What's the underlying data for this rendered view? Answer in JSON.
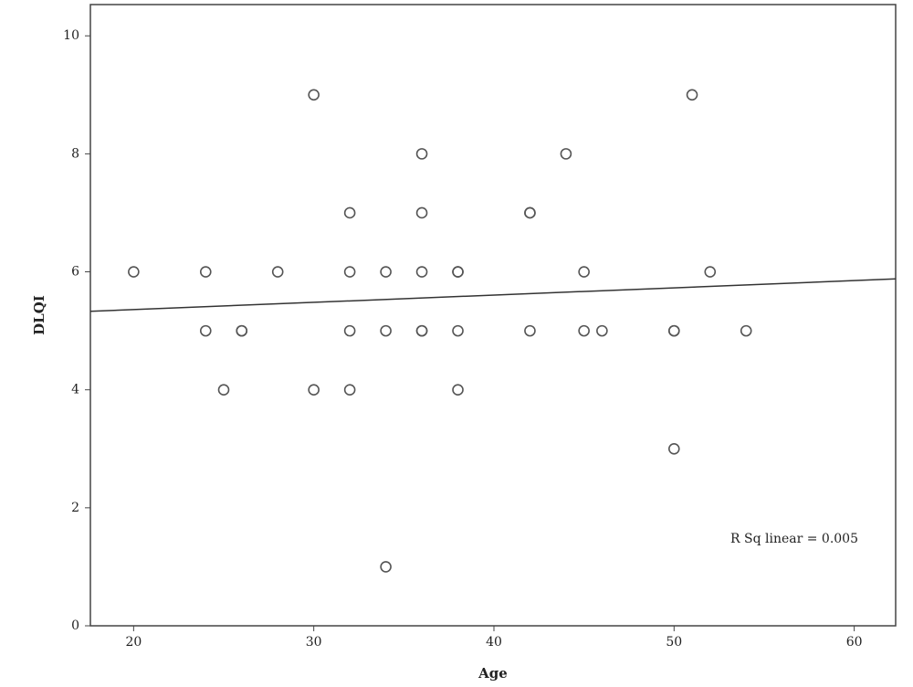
{
  "chart_data": {
    "type": "scatter",
    "xlabel": "Age",
    "ylabel": "DLQI",
    "annotation": "R Sq linear = 0.005",
    "x": [
      20,
      24,
      24,
      25,
      26,
      26,
      28,
      30,
      30,
      32,
      32,
      32,
      32,
      34,
      34,
      34,
      36,
      36,
      36,
      36,
      36,
      38,
      38,
      38,
      38,
      42,
      42,
      42,
      44,
      45,
      45,
      46,
      50,
      50,
      50,
      51,
      52,
      54
    ],
    "values": [
      6,
      6,
      5,
      4,
      5,
      5,
      6,
      9,
      4,
      7,
      6,
      5,
      4,
      6,
      5,
      1,
      8,
      7,
      6,
      5,
      5,
      6,
      6,
      5,
      4,
      7,
      7,
      5,
      8,
      6,
      5,
      5,
      5,
      5,
      3,
      9,
      6,
      5
    ],
    "color": "#555555",
    "fit_line": {
      "x": [
        17.6,
        62.3
      ],
      "y": [
        5.33,
        5.88
      ]
    },
    "xlim": [
      17.6,
      62.3
    ],
    "xticks": [
      20,
      30,
      40,
      50,
      60
    ],
    "ylim": [
      0,
      10.53
    ],
    "yticks": [
      0,
      2,
      4,
      6,
      8,
      10
    ]
  }
}
